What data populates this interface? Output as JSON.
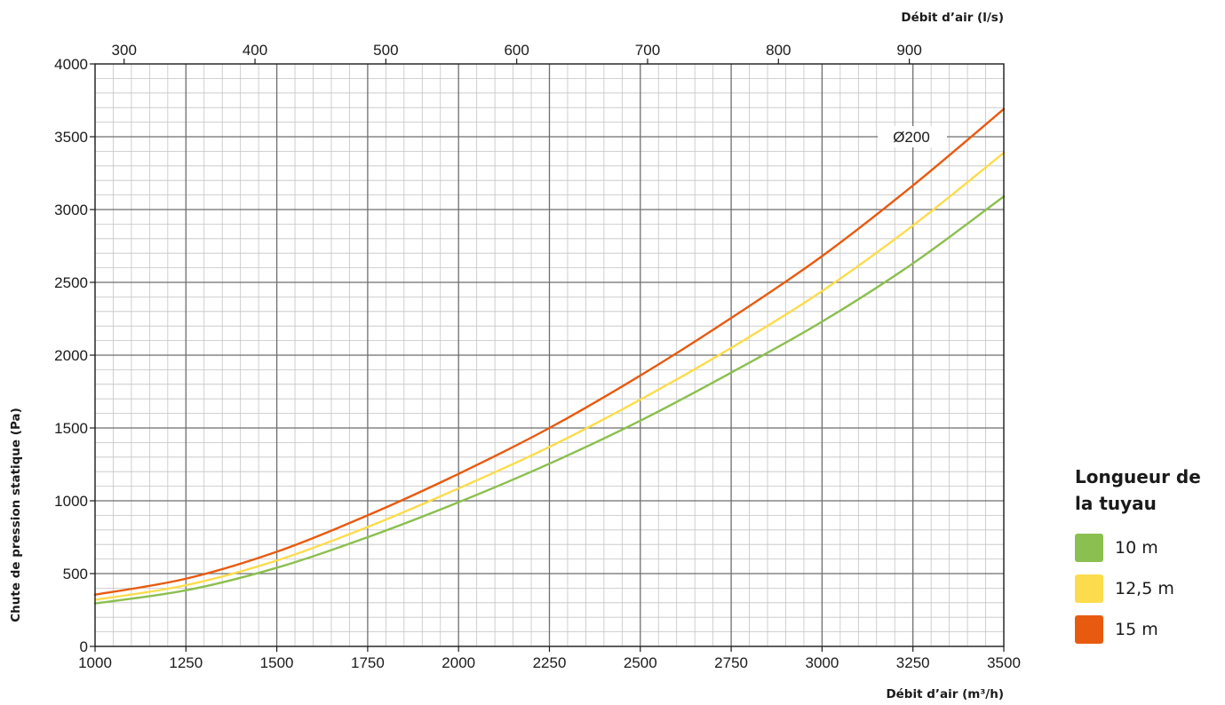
{
  "chart_data": {
    "type": "line",
    "annotation": "Ø200",
    "xlabel": "Débit d’air (m³/h)",
    "x2label": "Débit d’air (l/s)",
    "ylabel": "Chute de pression statique (Pa)",
    "xlim": [
      1000,
      3500
    ],
    "ylim": [
      0,
      4000
    ],
    "x2lim": [
      277.78,
      972.22
    ],
    "xticks": [
      "1000",
      "1250",
      "1500",
      "1750",
      "2000",
      "2250",
      "2500",
      "2750",
      "3000",
      "3250",
      "3500"
    ],
    "x2ticks": [
      "300",
      "400",
      "500",
      "600",
      "700",
      "800",
      "900"
    ],
    "yticks": [
      "0",
      "500",
      "1000",
      "1500",
      "2000",
      "2500",
      "3000",
      "3500",
      "4000"
    ],
    "grid": true,
    "legend_position": "right",
    "legend_title": "Longueur de la tuyau",
    "series": [
      {
        "name": "10 m",
        "color": "#8bbf4f",
        "x": [
          1000,
          1250,
          1500,
          1750,
          2000,
          2250,
          2500,
          2750,
          3000,
          3250,
          3500
        ],
        "values": [
          295,
          385,
          540,
          750,
          990,
          1255,
          1550,
          1880,
          2230,
          2630,
          3090
        ]
      },
      {
        "name": "12,5 m",
        "color": "#fcdc4d",
        "x": [
          1000,
          1250,
          1500,
          1750,
          2000,
          2250,
          2500,
          2750,
          3000,
          3250,
          3500
        ],
        "values": [
          320,
          420,
          590,
          820,
          1085,
          1370,
          1695,
          2050,
          2440,
          2890,
          3390
        ]
      },
      {
        "name": "15 m",
        "color": "#e85a0f",
        "x": [
          1000,
          1250,
          1500,
          1750,
          2000,
          2250,
          2500,
          2750,
          3000,
          3250,
          3500
        ],
        "values": [
          355,
          465,
          650,
          900,
          1185,
          1500,
          1860,
          2255,
          2680,
          3165,
          3690
        ]
      }
    ]
  }
}
